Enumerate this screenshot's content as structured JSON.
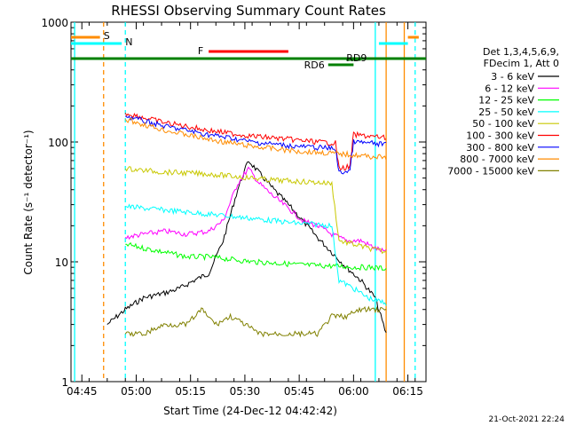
{
  "chart_data": {
    "type": "line",
    "title": "RHESSI Observing Summary Count Rates",
    "xlabel": "Start Time (24-Dec-12 04:42:42)",
    "ylabel": "Count Rate (s⁻¹ detector⁻¹)",
    "y_scale": "log",
    "ylim": [
      1,
      1000
    ],
    "xlim": [
      "04:42",
      "06:20"
    ],
    "x_ticks": [
      "04:45",
      "05:00",
      "05:15",
      "05:30",
      "05:45",
      "06:00",
      "06:15"
    ],
    "y_ticks": [
      "1",
      "10",
      "100",
      "1000"
    ],
    "legend_header": [
      "Det 1,3,4,5,6,9,",
      "FDecim 1, Att 0"
    ],
    "series": [
      {
        "name": "3 - 6 keV",
        "color": "#000000",
        "x": [
          "04:52",
          "04:57",
          "05:02",
          "05:08",
          "05:12",
          "05:16",
          "05:20",
          "05:24",
          "05:28",
          "05:31",
          "05:34",
          "05:38",
          "05:42",
          "05:46",
          "05:50",
          "05:54",
          "05:58",
          "06:02",
          "06:06",
          "06:09"
        ],
        "values": [
          3,
          4,
          5,
          5.5,
          6,
          7,
          8,
          15,
          40,
          70,
          55,
          40,
          30,
          22,
          16,
          12,
          9,
          7,
          5,
          2.5
        ]
      },
      {
        "name": "6 - 12 keV",
        "color": "#ff00ff",
        "x": [
          "04:57",
          "05:02",
          "05:08",
          "05:14",
          "05:20",
          "05:24",
          "05:28",
          "05:31",
          "05:34",
          "05:38",
          "05:42",
          "05:46",
          "05:50",
          "05:54",
          "05:58",
          "06:02",
          "06:06",
          "06:09"
        ],
        "values": [
          16,
          17,
          18,
          17,
          18,
          22,
          45,
          60,
          45,
          35,
          28,
          22,
          20,
          17,
          15,
          15,
          13,
          12
        ]
      },
      {
        "name": "12 - 25 keV",
        "color": "#00ff00",
        "x": [
          "04:57",
          "05:02",
          "05:08",
          "05:14",
          "05:20",
          "05:26",
          "05:32",
          "05:38",
          "05:44",
          "05:50",
          "05:56",
          "06:00",
          "06:04",
          "06:09"
        ],
        "values": [
          14,
          13,
          12,
          11,
          11,
          10.5,
          10,
          9.8,
          9.5,
          9.3,
          9.2,
          9,
          9,
          8.8
        ]
      },
      {
        "name": "25 - 50 keV",
        "color": "#00ffff",
        "x": [
          "04:57",
          "05:02",
          "05:08",
          "05:14",
          "05:20",
          "05:26",
          "05:32",
          "05:38",
          "05:44",
          "05:50",
          "05:54",
          "05:56",
          "06:00",
          "06:04",
          "06:09"
        ],
        "values": [
          29,
          28,
          27,
          26,
          25,
          24,
          23,
          22,
          21,
          20.5,
          20,
          7,
          6,
          5,
          4.5
        ]
      },
      {
        "name": "50 - 100 keV",
        "color": "#c8c800",
        "x": [
          "04:57",
          "05:02",
          "05:08",
          "05:14",
          "05:20",
          "05:26",
          "05:32",
          "05:38",
          "05:44",
          "05:50",
          "05:54",
          "05:56",
          "06:00",
          "06:04",
          "06:09"
        ],
        "values": [
          60,
          58,
          56,
          55,
          54,
          52,
          50,
          48,
          47,
          46,
          45,
          15,
          14,
          13,
          12
        ]
      },
      {
        "name": "100 - 300 keV",
        "color": "#ff0000",
        "x": [
          "04:57",
          "05:02",
          "05:08",
          "05:14",
          "05:20",
          "05:26",
          "05:32",
          "05:38",
          "05:44",
          "05:50",
          "05:55",
          "05:56",
          "05:59",
          "06:00",
          "06:04",
          "06:09"
        ],
        "values": [
          175,
          160,
          145,
          135,
          125,
          118,
          112,
          108,
          104,
          100,
          98,
          60,
          62,
          115,
          112,
          108
        ]
      },
      {
        "name": "300 - 800 keV",
        "color": "#0000ff",
        "x": [
          "04:57",
          "05:02",
          "05:08",
          "05:14",
          "05:20",
          "05:26",
          "05:32",
          "05:38",
          "05:44",
          "05:50",
          "05:55",
          "05:56",
          "05:59",
          "06:00",
          "06:04",
          "06:09"
        ],
        "values": [
          165,
          150,
          135,
          125,
          115,
          108,
          100,
          96,
          92,
          90,
          88,
          55,
          58,
          100,
          98,
          95
        ]
      },
      {
        "name": "800 - 7000 keV",
        "color": "#ff8c00",
        "x": [
          "04:57",
          "05:02",
          "05:08",
          "05:14",
          "05:20",
          "05:26",
          "05:32",
          "05:38",
          "05:44",
          "05:50",
          "05:55",
          "06:00",
          "06:04",
          "06:09"
        ],
        "values": [
          155,
          140,
          125,
          115,
          105,
          98,
          92,
          88,
          84,
          82,
          80,
          78,
          76,
          74
        ]
      },
      {
        "name": "7000 - 15000 keV",
        "color": "#808000",
        "x": [
          "04:57",
          "05:02",
          "05:08",
          "05:14",
          "05:18",
          "05:22",
          "05:26",
          "05:30",
          "05:34",
          "05:38",
          "05:42",
          "05:46",
          "05:50",
          "05:54",
          "05:58",
          "06:02",
          "06:06",
          "06:09"
        ],
        "values": [
          2.5,
          2.5,
          3,
          3,
          4,
          3,
          3.5,
          3,
          2.5,
          2.5,
          2.5,
          2.5,
          2.5,
          3.5,
          3.5,
          4,
          4,
          4
        ]
      }
    ],
    "flags": [
      {
        "label": "S",
        "color": "#ff8c00"
      },
      {
        "label": "N",
        "color": "#00ffff"
      },
      {
        "label": "F",
        "color": "#ff0000"
      },
      {
        "label": "RD6",
        "color": "#008000"
      },
      {
        "label": "RD9",
        "color": "#008000"
      }
    ],
    "grid": false,
    "legend_position": "right"
  },
  "footer": {
    "timestamp": "21-Oct-2021 22:24"
  }
}
